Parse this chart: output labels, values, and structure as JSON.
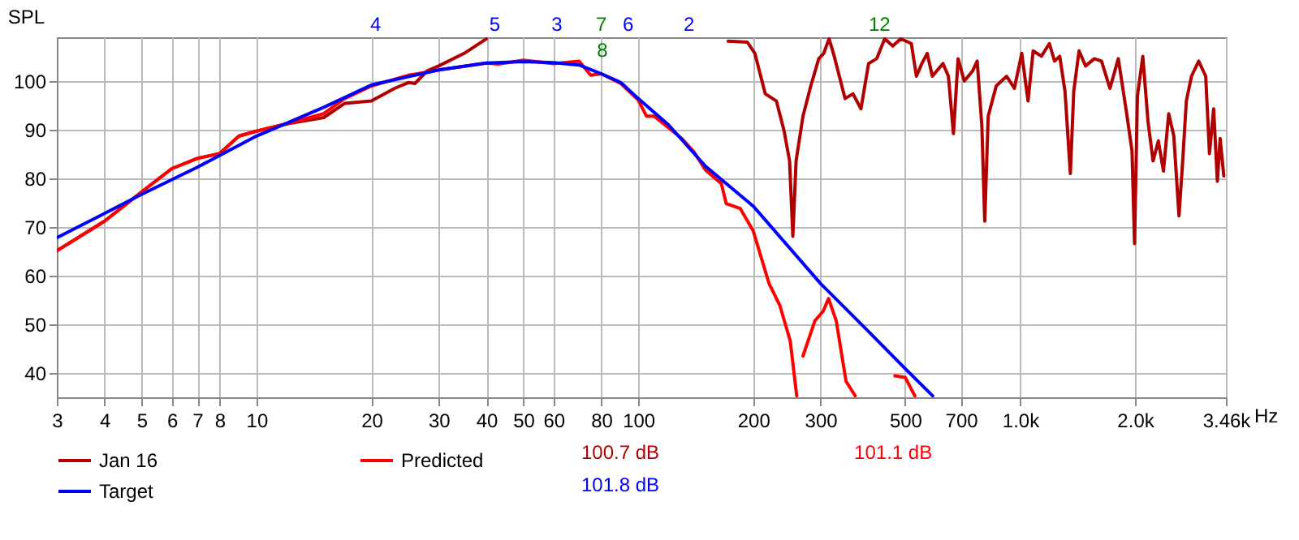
{
  "chart_data": {
    "type": "line",
    "ylabel": "SPL",
    "log": "x",
    "grid": true,
    "legend": "bottom",
    "line_style": "solid",
    "xlim": [
      3,
      3460
    ],
    "ylim": [
      35,
      109
    ],
    "xlabel": "Hz",
    "xticks": [
      3,
      4,
      5,
      6,
      7,
      8,
      10,
      20,
      30,
      40,
      50,
      60,
      80,
      100,
      200,
      300,
      500,
      700,
      {
        "value": 1000,
        "label": "1.0k"
      },
      {
        "value": 2000,
        "label": "2.0k"
      },
      {
        "value": 3460,
        "label": "3.46k"
      }
    ],
    "yticks": [
      40,
      50,
      60,
      70,
      80,
      90,
      100
    ],
    "series": [
      {
        "name": "Jan 16",
        "color": "#b00000",
        "x": [
          3,
          4,
          5,
          6,
          7,
          8,
          9,
          10,
          12,
          15,
          17,
          20,
          23,
          25,
          26,
          28,
          30,
          35,
          40,
          100,
          172,
          193,
          202,
          215,
          230,
          241,
          249,
          254,
          259,
          270,
          283,
          297,
          306,
          316,
          326,
          348,
          365,
          383,
          401,
          421,
          442,
          464,
          487,
          519,
          535,
          553,
          571,
          589,
          628,
          649,
          669,
          688,
          714,
          751,
          772,
          794,
          808,
          825,
          866,
          922,
          966,
          1010,
          1049,
          1082,
          1137,
          1193,
          1231,
          1270,
          1311,
          1354,
          1382,
          1427,
          1484,
          1565,
          1634,
          1719,
          1808,
          1902,
          1964,
          1994,
          2029,
          2096,
          2162,
          2230,
          2302,
          2374,
          2450,
          2527,
          2607,
          2666,
          2725,
          2811,
          2936,
          3063,
          3133,
          3213,
          3286,
          3341,
          3416
        ],
        "values": [
          65.1,
          71.2,
          77.2,
          82.0,
          84.1,
          85.1,
          88.7,
          89.7,
          91.2,
          92.5,
          95.4,
          95.9,
          98.5,
          99.7,
          99.5,
          102.1,
          103.1,
          105.7,
          108.7,
          null,
          108.2,
          108.0,
          105.7,
          97.4,
          95.9,
          89.7,
          83.6,
          68.1,
          83.6,
          92.8,
          99.0,
          104.6,
          105.7,
          108.7,
          105.1,
          96.4,
          97.4,
          94.3,
          103.6,
          104.6,
          108.7,
          107.2,
          108.7,
          107.7,
          101.0,
          103.6,
          105.7,
          101.0,
          103.6,
          101.0,
          89.2,
          104.6,
          100.0,
          102.1,
          104.1,
          90.8,
          71.2,
          92.8,
          99.0,
          101.0,
          98.5,
          105.7,
          95.9,
          106.2,
          105.1,
          107.7,
          104.1,
          105.1,
          97.9,
          81.0,
          97.9,
          106.2,
          103.1,
          104.6,
          104.1,
          98.5,
          104.6,
          93.3,
          85.6,
          66.6,
          96.9,
          105.1,
          91.8,
          83.6,
          87.7,
          81.5,
          93.3,
          88.7,
          72.3,
          83.6,
          95.9,
          101.0,
          104.1,
          101.0,
          85.1,
          94.3,
          79.4,
          88.2,
          80.5
        ]
      },
      {
        "name": "Predicted",
        "color": "#ff0000",
        "x": [
          3,
          4,
          5,
          6,
          7,
          8,
          9,
          10,
          12,
          15,
          17,
          20,
          25,
          30,
          40,
          43,
          50,
          60,
          70,
          75,
          80,
          90,
          100,
          105,
          110,
          130,
          140,
          150,
          165,
          170,
          185,
          200,
          220,
          235,
          250,
          260,
          265,
          270,
          290,
          305,
          315,
          330,
          350,
          370,
          420,
          470,
          500,
          530
        ],
        "values": [
          65.1,
          71.2,
          77.2,
          82.0,
          84.1,
          85.1,
          88.7,
          89.7,
          91.2,
          93.3,
          96.4,
          99.0,
          101.2,
          102.3,
          103.7,
          103.5,
          104.3,
          103.6,
          104.1,
          101.2,
          101.5,
          99.5,
          96.1,
          92.8,
          92.8,
          88.2,
          85.4,
          81.7,
          78.9,
          74.8,
          73.8,
          69.2,
          58.4,
          53.8,
          46.6,
          35.3,
          null,
          43.5,
          50.7,
          52.7,
          55.3,
          50.7,
          38.3,
          35.3,
          null,
          39.4,
          39.1,
          35.3
        ]
      },
      {
        "name": "Target",
        "color": "#0000ff",
        "x": [
          3,
          4,
          5,
          7,
          10,
          15,
          20,
          30,
          40,
          50,
          60,
          70,
          80,
          90,
          100,
          120,
          150,
          200,
          300,
          400,
          500,
          590
        ],
        "values": [
          67.8,
          72.8,
          76.7,
          82.3,
          88.7,
          94.6,
          99.2,
          102.3,
          103.7,
          104.0,
          103.8,
          103.3,
          101.5,
          99.7,
          96.4,
          91.0,
          82.5,
          74.3,
          58.4,
          48.6,
          40.9,
          35.3
        ]
      }
    ],
    "annotations": [
      "4",
      "5",
      "3",
      "7",
      "8",
      "6",
      "2",
      "12",
      "100.7 dB",
      "101.1 dB",
      "101.8 dB"
    ]
  }
}
